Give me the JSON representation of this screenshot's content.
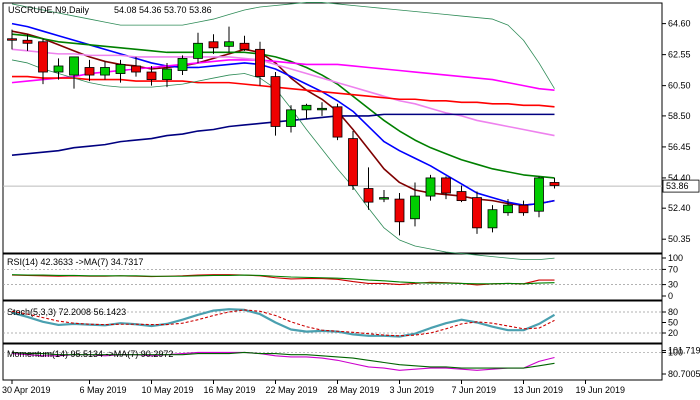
{
  "header": {
    "symbol_tf": "USCRUDE,N9,Daily",
    "ohlc": "54.08 54.36 53.70 53.86"
  },
  "chart_data": [
    {
      "type": "candlestick",
      "panel": "price",
      "y_ticks": [
        64.6,
        62.55,
        60.5,
        58.5,
        56.45,
        54.4,
        52.4,
        50.35
      ],
      "ylim": [
        49.9,
        65.5
      ],
      "last_price": "53.86",
      "x_labels": [
        "30 Apr 2019",
        "6 May 2019",
        "10 May 2019",
        "16 May 2019",
        "22 May 2019",
        "28 May 2019",
        "3 Jun 2019",
        "7 Jun 2019",
        "13 Jun 2019",
        "19 Jun 2019"
      ],
      "x_label_index": [
        0,
        5,
        9,
        13,
        17,
        21,
        25,
        29,
        33,
        37
      ],
      "candles": [
        {
          "o": 63.6,
          "h": 64.2,
          "l": 62.9,
          "c": 63.5
        },
        {
          "o": 63.5,
          "h": 63.9,
          "l": 62.8,
          "c": 63.3
        },
        {
          "o": 63.4,
          "h": 63.6,
          "l": 60.6,
          "c": 61.4
        },
        {
          "o": 61.4,
          "h": 62.3,
          "l": 60.9,
          "c": 61.8
        },
        {
          "o": 61.2,
          "h": 62.3,
          "l": 60.3,
          "c": 62.4
        },
        {
          "o": 61.7,
          "h": 62.2,
          "l": 60.8,
          "c": 61.2
        },
        {
          "o": 61.2,
          "h": 62.1,
          "l": 60.9,
          "c": 61.7
        },
        {
          "o": 61.3,
          "h": 62.2,
          "l": 60.7,
          "c": 61.9
        },
        {
          "o": 61.8,
          "h": 62.4,
          "l": 61.1,
          "c": 61.4
        },
        {
          "o": 61.4,
          "h": 61.8,
          "l": 60.5,
          "c": 60.9
        },
        {
          "o": 60.9,
          "h": 62.0,
          "l": 60.4,
          "c": 61.6
        },
        {
          "o": 61.5,
          "h": 62.5,
          "l": 61.2,
          "c": 62.3
        },
        {
          "o": 62.3,
          "h": 64.0,
          "l": 62.0,
          "c": 63.3
        },
        {
          "o": 63.4,
          "h": 63.9,
          "l": 62.6,
          "c": 63.0
        },
        {
          "o": 63.1,
          "h": 64.4,
          "l": 62.7,
          "c": 63.4
        },
        {
          "o": 63.3,
          "h": 63.8,
          "l": 62.8,
          "c": 62.9
        },
        {
          "o": 62.9,
          "h": 63.4,
          "l": 60.5,
          "c": 61.1
        },
        {
          "o": 61.1,
          "h": 61.4,
          "l": 57.2,
          "c": 57.8
        },
        {
          "o": 57.8,
          "h": 59.2,
          "l": 57.4,
          "c": 58.9
        },
        {
          "o": 58.9,
          "h": 59.3,
          "l": 58.3,
          "c": 59.2
        },
        {
          "o": 58.9,
          "h": 59.4,
          "l": 58.5,
          "c": 59.0
        },
        {
          "o": 59.1,
          "h": 59.3,
          "l": 56.9,
          "c": 57.1
        },
        {
          "o": 57.0,
          "h": 57.5,
          "l": 53.6,
          "c": 53.9
        },
        {
          "o": 53.7,
          "h": 55.1,
          "l": 52.3,
          "c": 52.8
        },
        {
          "o": 53.0,
          "h": 53.6,
          "l": 52.8,
          "c": 53.1
        },
        {
          "o": 53.0,
          "h": 53.4,
          "l": 50.6,
          "c": 51.5
        },
        {
          "o": 51.7,
          "h": 54.1,
          "l": 51.2,
          "c": 53.2
        },
        {
          "o": 53.2,
          "h": 54.6,
          "l": 52.9,
          "c": 54.4
        },
        {
          "o": 54.4,
          "h": 54.5,
          "l": 53.0,
          "c": 53.4
        },
        {
          "o": 53.5,
          "h": 53.9,
          "l": 52.8,
          "c": 52.9
        },
        {
          "o": 53.1,
          "h": 53.5,
          "l": 50.7,
          "c": 51.1
        },
        {
          "o": 51.1,
          "h": 52.6,
          "l": 50.8,
          "c": 52.3
        },
        {
          "o": 52.1,
          "h": 53.0,
          "l": 51.9,
          "c": 52.6
        },
        {
          "o": 52.6,
          "h": 52.9,
          "l": 51.9,
          "c": 52.1
        },
        {
          "o": 52.2,
          "h": 54.5,
          "l": 51.8,
          "c": 54.4
        },
        {
          "o": 54.1,
          "h": 54.4,
          "l": 53.7,
          "c": 53.9
        }
      ],
      "overlays": [
        {
          "color": "#7f0000",
          "values": [
            64.1,
            63.9,
            63.6,
            63.2,
            62.8,
            62.4,
            62.1,
            61.9,
            61.8,
            61.6,
            61.7,
            61.8,
            62.0,
            62.3,
            62.6,
            62.9,
            62.7,
            62.0,
            61.0,
            60.2,
            59.6,
            58.8,
            57.6,
            56.3,
            55.0,
            54.1,
            53.6,
            53.4,
            53.3,
            53.2,
            53.0,
            52.9,
            52.7,
            52.6,
            52.7,
            52.9
          ]
        },
        {
          "color": "#0000ff",
          "values": [
            64.6,
            64.4,
            64.1,
            63.8,
            63.5,
            63.2,
            62.9,
            62.6,
            62.3,
            62.0,
            61.8,
            61.7,
            61.7,
            61.8,
            61.9,
            62.0,
            61.9,
            61.6,
            61.1,
            60.6,
            60.1,
            59.5,
            58.8,
            57.8,
            56.8,
            56.2,
            55.7,
            55.2,
            54.6,
            54.0,
            53.4,
            53.1,
            52.8,
            52.6,
            52.7,
            52.9
          ]
        },
        {
          "color": "#008000",
          "values": [
            63.9,
            63.8,
            63.6,
            63.4,
            63.3,
            63.2,
            63.1,
            63.0,
            62.9,
            62.8,
            62.7,
            62.7,
            62.7,
            62.7,
            62.7,
            62.7,
            62.6,
            62.4,
            62.1,
            61.7,
            61.2,
            60.6,
            59.8,
            59.0,
            58.2,
            57.5,
            56.9,
            56.4,
            56.0,
            55.6,
            55.3,
            55.0,
            54.8,
            54.6,
            54.5,
            54.4
          ]
        },
        {
          "color": "#ff00ff",
          "values": [
            60.7,
            60.8,
            60.9,
            61.0,
            61.1,
            61.3,
            61.4,
            61.5,
            61.6,
            61.7,
            61.8,
            61.9,
            62.0,
            62.1,
            62.2,
            62.2,
            62.2,
            62.1,
            62.0,
            61.9,
            61.9,
            61.9,
            61.8,
            61.7,
            61.6,
            61.5,
            61.4,
            61.3,
            61.2,
            61.1,
            61.0,
            60.9,
            60.7,
            60.5,
            60.3,
            60.2
          ]
        },
        {
          "color": "#ee82ee",
          "values": [
            62.9,
            62.8,
            62.7,
            62.6,
            62.6,
            62.5,
            62.5,
            62.5,
            62.4,
            62.4,
            62.4,
            62.4,
            62.4,
            62.4,
            62.4,
            62.3,
            62.2,
            61.9,
            61.6,
            61.3,
            61.0,
            60.7,
            60.4,
            60.1,
            59.8,
            59.5,
            59.3,
            59.0,
            58.7,
            58.5,
            58.2,
            58.0,
            57.8,
            57.6,
            57.4,
            57.2
          ]
        },
        {
          "color": "#ff0000",
          "values": [
            61.1,
            61.1,
            61.0,
            61.0,
            61.0,
            60.9,
            60.9,
            60.9,
            60.8,
            60.8,
            60.8,
            60.8,
            60.7,
            60.7,
            60.7,
            60.6,
            60.5,
            60.4,
            60.3,
            60.2,
            60.1,
            60.0,
            59.9,
            59.8,
            59.7,
            59.6,
            59.6,
            59.5,
            59.5,
            59.4,
            59.4,
            59.3,
            59.3,
            59.2,
            59.2,
            59.1
          ]
        },
        {
          "color": "#000080",
          "values": [
            55.9,
            56.0,
            56.1,
            56.2,
            56.4,
            56.5,
            56.6,
            56.8,
            56.9,
            57.0,
            57.2,
            57.3,
            57.5,
            57.6,
            57.8,
            57.9,
            58.0,
            58.1,
            58.2,
            58.3,
            58.4,
            58.5,
            58.5,
            58.5,
            58.6,
            58.6,
            58.6,
            58.6,
            58.6,
            58.6,
            58.6,
            58.6,
            58.6,
            58.6,
            58.6,
            58.6
          ]
        },
        {
          "color": "#2e8b57",
          "values": [
            65.9,
            65.7,
            65.5,
            65.3,
            65.1,
            64.9,
            64.7,
            64.5,
            64.5,
            64.5,
            64.5,
            64.5,
            64.7,
            64.9,
            65.2,
            65.5,
            65.7,
            65.8,
            65.9,
            66.0,
            66.0,
            65.9,
            65.8,
            65.7,
            65.6,
            65.5,
            65.4,
            65.3,
            65.2,
            65.1,
            65.0,
            64.9,
            64.5,
            63.5,
            62.0,
            60.3
          ],
          "thin": true
        },
        {
          "color": "#2e8b57",
          "values": [
            62.2,
            62.0,
            61.6,
            61.3,
            61.0,
            60.7,
            60.5,
            60.4,
            60.4,
            60.4,
            60.5,
            60.6,
            60.8,
            61.0,
            61.2,
            61.3,
            61.0,
            60.3,
            59.0,
            57.6,
            56.3,
            55.0,
            53.8,
            52.4,
            51.1,
            50.3,
            49.9,
            49.7,
            49.5,
            49.4,
            49.3,
            49.2,
            49.1,
            49.0,
            49.0,
            49.1
          ],
          "thin": true
        }
      ]
    },
    {
      "type": "line",
      "panel": "rsi",
      "label": "RSI(14) 42.3633  ->MA(7) 34.7317",
      "y_ticks": [
        100,
        70,
        30,
        0
      ],
      "ylim": [
        0,
        100
      ],
      "series": [
        {
          "color": "#cc0000",
          "values": [
            55,
            54,
            53,
            52,
            53,
            52,
            52,
            53,
            52,
            51,
            52,
            53,
            55,
            56,
            56,
            55,
            53,
            48,
            45,
            46,
            46,
            44,
            38,
            33,
            33,
            30,
            33,
            36,
            35,
            33,
            29,
            32,
            33,
            32,
            42,
            42
          ]
        },
        {
          "color": "#008000",
          "values": [
            56,
            55,
            55,
            54,
            54,
            53,
            53,
            53,
            53,
            52,
            52,
            52,
            53,
            54,
            54,
            55,
            54,
            52,
            50,
            49,
            48,
            47,
            45,
            42,
            40,
            37,
            35,
            34,
            34,
            33,
            32,
            32,
            33,
            32,
            34,
            35
          ]
        }
      ]
    },
    {
      "type": "line",
      "panel": "stoch",
      "label": "Stoch(5,3,3) 72.2008 56.1423",
      "y_ticks": [
        80,
        50,
        20
      ],
      "ylim": [
        0,
        100
      ],
      "series": [
        {
          "color": "#4aa0b0",
          "width": 2.2,
          "values": [
            78,
            66,
            52,
            43,
            46,
            44,
            42,
            48,
            45,
            40,
            46,
            58,
            72,
            84,
            88,
            86,
            74,
            50,
            30,
            24,
            26,
            24,
            16,
            12,
            12,
            10,
            18,
            34,
            48,
            58,
            50,
            38,
            28,
            28,
            46,
            72
          ]
        },
        {
          "color": "#cc0000",
          "dash": "3,2",
          "values": [
            82,
            74,
            64,
            54,
            48,
            45,
            44,
            45,
            45,
            44,
            44,
            48,
            58,
            70,
            80,
            86,
            82,
            70,
            52,
            38,
            28,
            25,
            22,
            18,
            14,
            12,
            14,
            20,
            32,
            46,
            52,
            48,
            40,
            32,
            34,
            56
          ]
        }
      ]
    },
    {
      "type": "line",
      "panel": "momentum",
      "label": "Momentum(14) 95.5134  ->MA(7) 90.2972",
      "y_ticks": [
        100,
        101.7196,
        80.7005
      ],
      "ylim": [
        78,
        104
      ],
      "series": [
        {
          "color": "#cc00cc",
          "values": [
            99,
            98,
            97,
            97,
            98,
            98,
            97,
            98,
            98,
            97,
            98,
            99,
            100,
            100,
            100,
            100,
            99,
            97,
            96,
            96,
            95,
            93,
            90,
            87,
            86,
            84,
            85,
            86,
            86,
            85,
            84,
            85,
            86,
            86,
            92,
            95.5
          ]
        },
        {
          "color": "#006400",
          "values": [
            100,
            99,
            99,
            98,
            98,
            98,
            98,
            98,
            98,
            98,
            98,
            98,
            99,
            99,
            99,
            100,
            99,
            99,
            98,
            98,
            97,
            96,
            95,
            93,
            91,
            89,
            88,
            87,
            87,
            86,
            86,
            86,
            86,
            86,
            88,
            90.3
          ]
        }
      ]
    }
  ]
}
